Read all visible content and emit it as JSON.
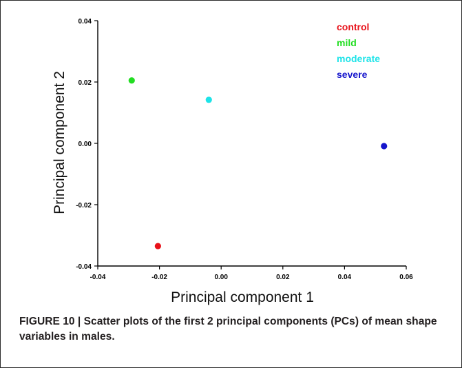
{
  "chart_data": {
    "type": "scatter",
    "title": "",
    "xlabel": "Principal component 1",
    "ylabel": "Principal component 2",
    "xlim": [
      -0.04,
      0.06
    ],
    "ylim": [
      -0.04,
      0.04
    ],
    "x_ticks": [
      "-0.04",
      "-0.02",
      "0.00",
      "0.02",
      "0.04",
      "0.06"
    ],
    "y_ticks": [
      "-0.04",
      "-0.02",
      "0.00",
      "0.02",
      "0.04"
    ],
    "grid": false,
    "legend_position": "top-right",
    "series": [
      {
        "name": "control",
        "color": "#e8121a",
        "x": [
          -0.0205
        ],
        "y": [
          -0.0335
        ]
      },
      {
        "name": "mild",
        "color": "#22dd22",
        "x": [
          -0.029
        ],
        "y": [
          0.0205
        ]
      },
      {
        "name": "moderate",
        "color": "#1de3e8",
        "x": [
          -0.004
        ],
        "y": [
          0.0142
        ]
      },
      {
        "name": "severe",
        "color": "#1515cc",
        "x": [
          0.0528
        ],
        "y": [
          -0.0009
        ]
      }
    ]
  },
  "caption": "FIGURE 10 | Scatter plots of the first 2 principal components (PCs) of mean shape variables in males."
}
